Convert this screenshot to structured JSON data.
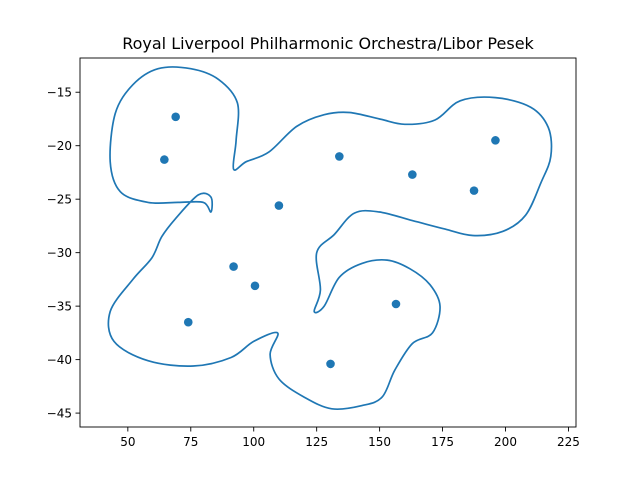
{
  "chart_data": {
    "type": "scatter",
    "title": "Royal Liverpool Philharmonic Orchestra/Libor Pesek",
    "xlabel": "",
    "ylabel": "",
    "xlim": [
      31,
      228
    ],
    "ylim": [
      -46.3,
      -11.8
    ],
    "grid": false,
    "color": "#1f77b4",
    "xticks": [
      50,
      75,
      100,
      125,
      150,
      175,
      200,
      225
    ],
    "yticks": [
      -45,
      -40,
      -35,
      -30,
      -25,
      -20,
      -15
    ],
    "xtick_labels": [
      "50",
      "75",
      "100",
      "125",
      "150",
      "175",
      "200",
      "225"
    ],
    "ytick_labels": [
      "−45",
      "−40",
      "−35",
      "−30",
      "−25",
      "−20",
      "−15"
    ],
    "points": [
      {
        "x": 69,
        "y": -17.3
      },
      {
        "x": 64.5,
        "y": -21.3
      },
      {
        "x": 134,
        "y": -21.0
      },
      {
        "x": 163,
        "y": -22.7
      },
      {
        "x": 196,
        "y": -19.5
      },
      {
        "x": 187.5,
        "y": -24.2
      },
      {
        "x": 110,
        "y": -25.6
      },
      {
        "x": 92,
        "y": -31.3
      },
      {
        "x": 100.5,
        "y": -33.1
      },
      {
        "x": 156.5,
        "y": -34.8
      },
      {
        "x": 74,
        "y": -36.5
      },
      {
        "x": 130.5,
        "y": -40.4
      }
    ],
    "outline": [
      [
        43,
        -21.5
      ],
      [
        45,
        -17
      ],
      [
        52,
        -14.3
      ],
      [
        62,
        -12.8
      ],
      [
        75,
        -12.8
      ],
      [
        86,
        -13.8
      ],
      [
        93.5,
        -16
      ],
      [
        93,
        -19.5
      ],
      [
        92,
        -22.2
      ],
      [
        97,
        -21.5
      ],
      [
        106,
        -20.6
      ],
      [
        117,
        -18.2
      ],
      [
        128,
        -17.1
      ],
      [
        138,
        -16.9
      ],
      [
        150,
        -17.5
      ],
      [
        160,
        -18
      ],
      [
        172,
        -17.6
      ],
      [
        182,
        -15.8
      ],
      [
        196,
        -15.5
      ],
      [
        210,
        -16.4
      ],
      [
        217,
        -18.3
      ],
      [
        218,
        -21
      ],
      [
        214,
        -23.5
      ],
      [
        208,
        -26.5
      ],
      [
        199,
        -28
      ],
      [
        187,
        -28.4
      ],
      [
        176,
        -27.8
      ],
      [
        163,
        -27
      ],
      [
        150,
        -26.2
      ],
      [
        140,
        -26.3
      ],
      [
        132,
        -28.3
      ],
      [
        125,
        -30
      ],
      [
        126.5,
        -33.5
      ],
      [
        124,
        -35.5
      ],
      [
        128,
        -35
      ],
      [
        134,
        -32.3
      ],
      [
        143,
        -31
      ],
      [
        153,
        -30.7
      ],
      [
        162,
        -31.5
      ],
      [
        170,
        -33
      ],
      [
        174,
        -35
      ],
      [
        171,
        -37.5
      ],
      [
        163,
        -38.5
      ],
      [
        156,
        -41
      ],
      [
        151,
        -43.5
      ],
      [
        143,
        -44.3
      ],
      [
        131,
        -44.6
      ],
      [
        120,
        -43.5
      ],
      [
        110,
        -41.8
      ],
      [
        106.5,
        -39.5
      ],
      [
        109.5,
        -37.5
      ],
      [
        100,
        -38.3
      ],
      [
        91,
        -39.8
      ],
      [
        76,
        -40.6
      ],
      [
        58,
        -40.1
      ],
      [
        44.5,
        -38.3
      ],
      [
        43,
        -35.5
      ],
      [
        52,
        -32.5
      ],
      [
        59.5,
        -30.5
      ],
      [
        63.5,
        -28.5
      ],
      [
        69,
        -26.8
      ],
      [
        78,
        -24.6
      ],
      [
        83,
        -24.8
      ],
      [
        83,
        -26.2
      ],
      [
        80,
        -25.3
      ],
      [
        70,
        -25.3
      ],
      [
        58,
        -25.3
      ],
      [
        47,
        -24.3
      ]
    ]
  }
}
